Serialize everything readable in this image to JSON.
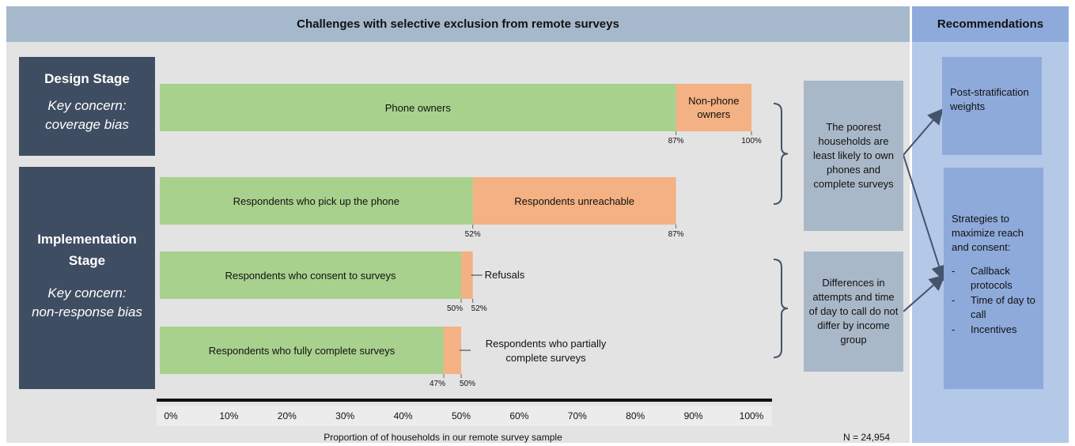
{
  "header": {
    "main_title": "Challenges with selective exclusion from remote surveys",
    "rec_title": "Recommendations"
  },
  "stages": [
    {
      "title": "Design Stage",
      "concern_label": "Key concern:",
      "concern": "coverage bias"
    },
    {
      "title": "Implementation Stage",
      "title_lines": [
        "Implementation",
        "Stage"
      ],
      "concern_label": "Key concern:",
      "concern": "non-response bias"
    }
  ],
  "concerns": [
    {
      "text": "The poorest households are least likely to own phones and complete surveys"
    },
    {
      "text": "Differences in attempts and time of day to call do not differ by income group"
    }
  ],
  "recommendations": {
    "box1": "Post-stratification weights",
    "box2_intro": "Strategies to maximize reach and consent:",
    "box2_items": [
      "Callback protocols",
      "Time of day to call",
      "Incentives"
    ],
    "bullet_char": "-"
  },
  "colors": {
    "green": "#a9d18e",
    "orange": "#f4b183",
    "stage_bg": "#3f4d62",
    "header_bg": "#a6b8cc",
    "rec_header_bg": "#8eaadb",
    "arrow": "#44546a"
  },
  "footer": {
    "n_label": "N = 24,954"
  },
  "chart_data": {
    "type": "bar",
    "orientation": "horizontal",
    "stacked": true,
    "xlabel": "Proportion of of households in our remote survey sample",
    "xlim": [
      0,
      100
    ],
    "xticks": [
      "0%",
      "10%",
      "20%",
      "30%",
      "40%",
      "50%",
      "60%",
      "70%",
      "80%",
      "90%",
      "100%"
    ],
    "rows": [
      {
        "segments": [
          {
            "label": "Phone owners",
            "start": 0,
            "end": 87,
            "color": "green"
          },
          {
            "label": "Non-phone owners",
            "start": 87,
            "end": 100,
            "color": "orange"
          }
        ],
        "end_labels": [
          "87%",
          "100%"
        ]
      },
      {
        "segments": [
          {
            "label": "Respondents who pick up the phone",
            "start": 0,
            "end": 52,
            "color": "green"
          },
          {
            "label": "Respondents unreachable",
            "start": 52,
            "end": 87,
            "color": "orange"
          }
        ],
        "end_labels": [
          "52%",
          "87%"
        ]
      },
      {
        "segments": [
          {
            "label": "Respondents who consent to surveys",
            "start": 0,
            "end": 50,
            "color": "green"
          },
          {
            "label": "Refusals",
            "start": 50,
            "end": 52,
            "color": "orange",
            "external": true
          }
        ],
        "end_labels": [
          "50%",
          "52%"
        ]
      },
      {
        "segments": [
          {
            "label": "Respondents who fully complete surveys",
            "start": 0,
            "end": 47,
            "color": "green"
          },
          {
            "label": "Respondents who partially complete surveys",
            "start": 47,
            "end": 50,
            "color": "orange",
            "external": true
          }
        ],
        "end_labels": [
          "47%",
          "50%"
        ]
      }
    ]
  }
}
